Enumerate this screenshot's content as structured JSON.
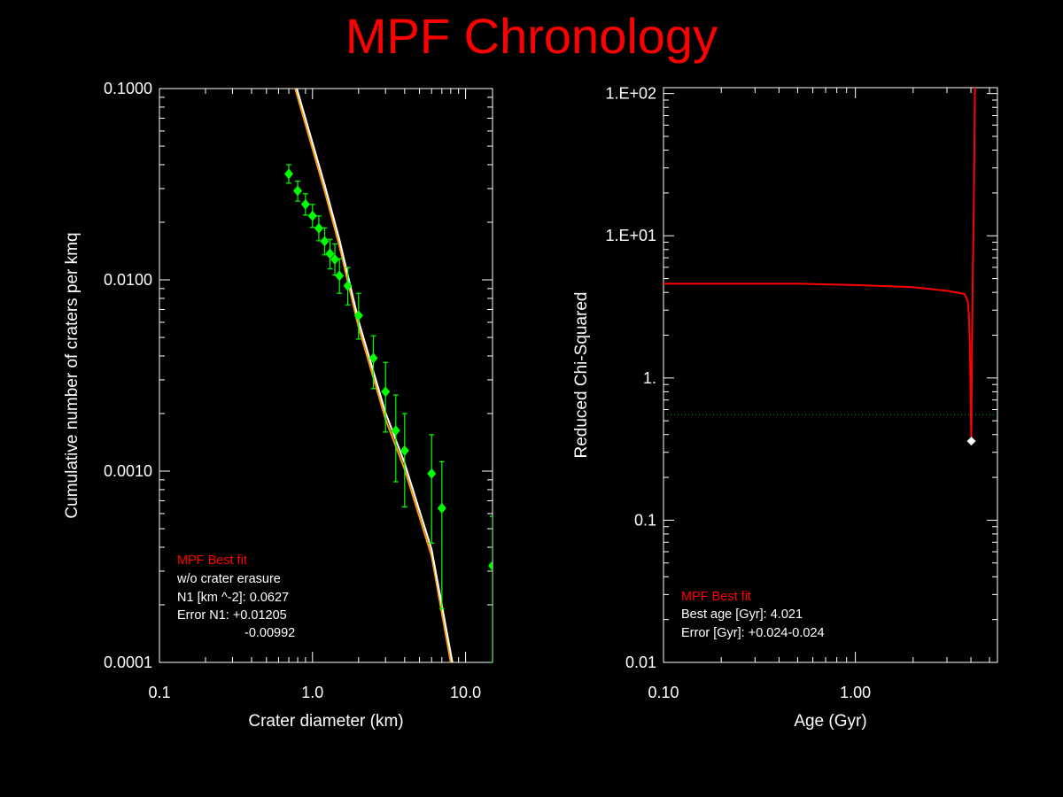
{
  "title": "MPF Chronology",
  "colors": {
    "background": "#000000",
    "title": "#ff0000",
    "axes": "#ffffff",
    "points": "#00ff00",
    "fit_white": "#ffffff",
    "fit_orange": "#ff9900",
    "chi_curve": "#ff0000",
    "dotted": "#00aa00"
  },
  "chart_data": [
    {
      "type": "scatter",
      "xlabel": "Crater diameter (km)",
      "ylabel": "Cumulative number of craters per kmq",
      "xscale": "log",
      "yscale": "log",
      "xlim": [
        0.1,
        15
      ],
      "ylim": [
        0.0001,
        0.1
      ],
      "xticks": [
        {
          "v": 0.1,
          "label": "0.1"
        },
        {
          "v": 1,
          "label": "1.0"
        },
        {
          "v": 10,
          "label": "10.0"
        }
      ],
      "yticks": [
        {
          "v": 0.0001,
          "label": "0.0001"
        },
        {
          "v": 0.001,
          "label": "0.0010"
        },
        {
          "v": 0.01,
          "label": "0.0100"
        },
        {
          "v": 0.1,
          "label": "0.1000"
        }
      ],
      "points": [
        {
          "x": 0.7,
          "y": 0.0358,
          "lo": 0.032,
          "hi": 0.04
        },
        {
          "x": 0.8,
          "y": 0.0292,
          "lo": 0.0258,
          "hi": 0.0328
        },
        {
          "x": 0.9,
          "y": 0.0248,
          "lo": 0.0218,
          "hi": 0.0282
        },
        {
          "x": 1.0,
          "y": 0.0216,
          "lo": 0.0188,
          "hi": 0.0248
        },
        {
          "x": 1.1,
          "y": 0.0186,
          "lo": 0.016,
          "hi": 0.0216
        },
        {
          "x": 1.2,
          "y": 0.0159,
          "lo": 0.0135,
          "hi": 0.0187
        },
        {
          "x": 1.3,
          "y": 0.0137,
          "lo": 0.0114,
          "hi": 0.0163
        },
        {
          "x": 1.4,
          "y": 0.0128,
          "lo": 0.0106,
          "hi": 0.0154
        },
        {
          "x": 1.5,
          "y": 0.0105,
          "lo": 0.0085,
          "hi": 0.0129
        },
        {
          "x": 1.7,
          "y": 0.0093,
          "lo": 0.0074,
          "hi": 0.0116
        },
        {
          "x": 2.0,
          "y": 0.0065,
          "lo": 0.0049,
          "hi": 0.0085
        },
        {
          "x": 2.5,
          "y": 0.0039,
          "lo": 0.0027,
          "hi": 0.0051
        },
        {
          "x": 3.0,
          "y": 0.0026,
          "lo": 0.0016,
          "hi": 0.0037
        },
        {
          "x": 3.5,
          "y": 0.00163,
          "lo": 0.00088,
          "hi": 0.0025
        },
        {
          "x": 4.0,
          "y": 0.00128,
          "lo": 0.00065,
          "hi": 0.002
        },
        {
          "x": 6.0,
          "y": 0.00097,
          "lo": 0.00042,
          "hi": 0.00155
        },
        {
          "x": 7.0,
          "y": 0.00064,
          "lo": 0.00019,
          "hi": 0.00112
        },
        {
          "x": 15.0,
          "y": 0.00032,
          "lo": 0.0001,
          "hi": 0.00058
        }
      ],
      "fit_lines": [
        {
          "color": "#ff9900",
          "points": [
            [
              0.77,
              0.1
            ],
            [
              1.2,
              0.0291
            ],
            [
              1.5,
              0.015
            ],
            [
              2.0,
              0.00566
            ],
            [
              3.0,
              0.00187
            ],
            [
              4.0,
              0.00102
            ],
            [
              6.0,
              0.00036
            ],
            [
              8.0,
              0.0001
            ]
          ]
        },
        {
          "color": "#ffffff",
          "points": [
            [
              0.79,
              0.1
            ],
            [
              1.2,
              0.0314
            ],
            [
              1.5,
              0.0162
            ],
            [
              2.0,
              0.0061
            ],
            [
              3.0,
              0.00202
            ],
            [
              4.0,
              0.0011
            ],
            [
              6.0,
              0.00039
            ],
            [
              8.2,
              0.0001
            ]
          ]
        }
      ],
      "legend": {
        "title": "MPF Best fit",
        "lines": [
          "w/o crater erasure",
          "N1 [km ^-2]: 0.0627",
          "Error N1: +0.01205",
          "-0.00992"
        ]
      }
    },
    {
      "type": "line",
      "xlabel": "Age (Gyr)",
      "ylabel": "Reduced Chi-Squared",
      "xscale": "log",
      "yscale": "log",
      "xlim": [
        0.1,
        5.5
      ],
      "ylim": [
        0.01,
        110
      ],
      "xticks": [
        {
          "v": 0.1,
          "label": "0.10"
        },
        {
          "v": 1,
          "label": "1.00"
        }
      ],
      "yticks": [
        {
          "v": 0.01,
          "label": "0.01"
        },
        {
          "v": 0.1,
          "label": "0.1"
        },
        {
          "v": 1,
          "label": "1."
        },
        {
          "v": 10,
          "label": "1.E+01"
        },
        {
          "v": 100,
          "label": "1.E+02"
        }
      ],
      "curve": [
        [
          0.1,
          4.6
        ],
        [
          0.5,
          4.6
        ],
        [
          1.0,
          4.5
        ],
        [
          2.0,
          4.35
        ],
        [
          3.0,
          4.1
        ],
        [
          3.7,
          3.9
        ],
        [
          3.85,
          3.5
        ],
        [
          3.9,
          2.8
        ],
        [
          3.95,
          1.6
        ],
        [
          3.98,
          0.9
        ],
        [
          4.0,
          0.55
        ],
        [
          4.021,
          0.36
        ],
        [
          4.04,
          1.0
        ],
        [
          4.08,
          4.0
        ],
        [
          4.15,
          20
        ],
        [
          4.2,
          110
        ]
      ],
      "threshold": 0.55,
      "best": {
        "x": 4.021,
        "y": 0.36
      },
      "legend": {
        "title": "MPF Best fit",
        "lines": [
          "Best age [Gyr]: 4.021",
          "Error [Gyr]: +0.024-0.024"
        ]
      }
    }
  ]
}
